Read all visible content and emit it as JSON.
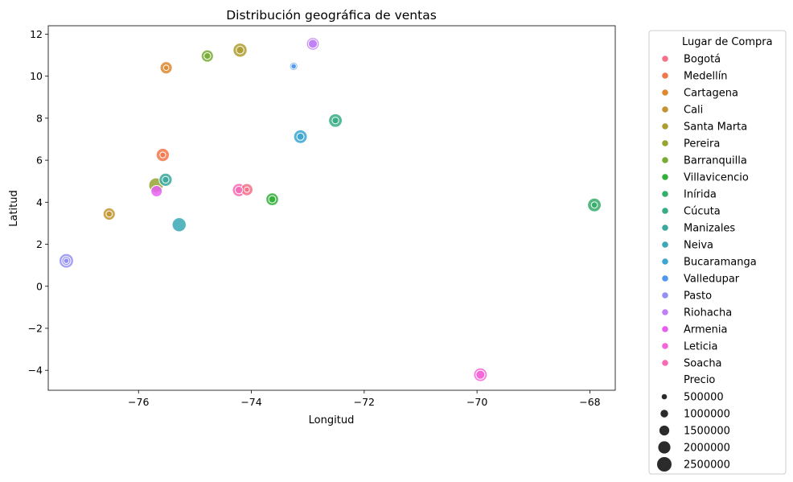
{
  "chart_data": {
    "type": "scatter",
    "title": "Distribución geográfica de ventas",
    "xlabel": "Longitud",
    "ylabel": "Latitud",
    "xlim": [
      -77.6,
      -67.55
    ],
    "ylim": [
      -4.95,
      12.4
    ],
    "xticks": [
      -76,
      -74,
      -72,
      -70,
      -68
    ],
    "xtick_labels": [
      "−76",
      "−74",
      "−72",
      "−70",
      "−68"
    ],
    "yticks": [
      -4,
      -2,
      0,
      2,
      4,
      6,
      8,
      10,
      12
    ],
    "ytick_labels": [
      "−4",
      "−2",
      "0",
      "2",
      "4",
      "6",
      "8",
      "10",
      "12"
    ],
    "grid": false,
    "legend_position": "outside right",
    "hue_title": "Lugar de Compra",
    "size_title": "Precio",
    "size_levels": [
      {
        "label": "500000",
        "value": 500000
      },
      {
        "label": "1000000",
        "value": 1000000
      },
      {
        "label": "1500000",
        "value": 1500000
      },
      {
        "label": "2000000",
        "value": 2000000
      },
      {
        "label": "2500000",
        "value": 2500000
      }
    ],
    "series": [
      {
        "name": "Bogotá",
        "color": "#f77189",
        "points": [
          {
            "x": -74.08,
            "y": 4.6,
            "size": 2000000
          },
          {
            "x": -74.08,
            "y": 4.6,
            "size": 500000
          }
        ]
      },
      {
        "name": "Medellín",
        "color": "#f2774a",
        "points": [
          {
            "x": -75.57,
            "y": 6.25,
            "size": 2200000
          },
          {
            "x": -75.57,
            "y": 6.25,
            "size": 600000
          }
        ]
      },
      {
        "name": "Cartagena",
        "color": "#dc8932",
        "points": [
          {
            "x": -75.51,
            "y": 10.4,
            "size": 2000000
          },
          {
            "x": -75.51,
            "y": 10.4,
            "size": 500000
          }
        ]
      },
      {
        "name": "Cali",
        "color": "#c39532",
        "points": [
          {
            "x": -76.52,
            "y": 3.44,
            "size": 2000000
          },
          {
            "x": -76.52,
            "y": 3.44,
            "size": 700000
          }
        ]
      },
      {
        "name": "Santa Marta",
        "color": "#ae9d31",
        "points": [
          {
            "x": -74.2,
            "y": 11.24,
            "size": 2400000
          },
          {
            "x": -74.2,
            "y": 11.24,
            "size": 1000000
          }
        ]
      },
      {
        "name": "Pereira",
        "color": "#97a431",
        "points": [
          {
            "x": -75.69,
            "y": 4.81,
            "size": 2500000
          }
        ]
      },
      {
        "name": "Barranquilla",
        "color": "#77ab31",
        "points": [
          {
            "x": -74.78,
            "y": 10.96,
            "size": 2000000
          },
          {
            "x": -74.78,
            "y": 10.96,
            "size": 800000
          }
        ]
      },
      {
        "name": "Villavicencio",
        "color": "#33b039",
        "points": [
          {
            "x": -73.63,
            "y": 4.14,
            "size": 2100000
          },
          {
            "x": -73.63,
            "y": 4.14,
            "size": 900000
          }
        ]
      },
      {
        "name": "Inírida",
        "color": "#35ad6b",
        "points": [
          {
            "x": -67.92,
            "y": 3.87,
            "size": 2300000
          },
          {
            "x": -67.92,
            "y": 3.87,
            "size": 700000
          }
        ]
      },
      {
        "name": "Cúcuta",
        "color": "#37ab86",
        "points": [
          {
            "x": -72.51,
            "y": 7.89,
            "size": 2300000
          },
          {
            "x": -72.51,
            "y": 7.89,
            "size": 800000
          }
        ]
      },
      {
        "name": "Manizales",
        "color": "#39a99d",
        "points": [
          {
            "x": -75.52,
            "y": 5.07,
            "size": 2200000
          },
          {
            "x": -75.52,
            "y": 5.07,
            "size": 800000
          }
        ]
      },
      {
        "name": "Neiva",
        "color": "#3aa8b5",
        "points": [
          {
            "x": -75.28,
            "y": 2.93,
            "size": 2400000
          }
        ]
      },
      {
        "name": "Bucaramanga",
        "color": "#3ca5d0",
        "points": [
          {
            "x": -73.13,
            "y": 7.12,
            "size": 2300000
          },
          {
            "x": -73.13,
            "y": 7.12,
            "size": 900000
          }
        ]
      },
      {
        "name": "Valledupar",
        "color": "#5098ee",
        "points": [
          {
            "x": -73.25,
            "y": 10.47,
            "size": 1100000
          },
          {
            "x": -73.25,
            "y": 10.47,
            "size": 500000
          }
        ]
      },
      {
        "name": "Pasto",
        "color": "#9491f4",
        "points": [
          {
            "x": -77.28,
            "y": 1.21,
            "size": 2500000
          },
          {
            "x": -77.28,
            "y": 1.21,
            "size": 1300000
          },
          {
            "x": -77.28,
            "y": 1.21,
            "size": 500000
          }
        ]
      },
      {
        "name": "Riohacha",
        "color": "#c07ff4",
        "points": [
          {
            "x": -72.91,
            "y": 11.54,
            "size": 2100000
          },
          {
            "x": -72.91,
            "y": 11.54,
            "size": 1300000
          }
        ]
      },
      {
        "name": "Armenia",
        "color": "#e65ff3",
        "points": [
          {
            "x": -75.68,
            "y": 4.53,
            "size": 1800000
          }
        ]
      },
      {
        "name": "Leticia",
        "color": "#f565d8",
        "points": [
          {
            "x": -69.94,
            "y": -4.21,
            "size": 2300000
          },
          {
            "x": -69.94,
            "y": -4.21,
            "size": 1300000
          }
        ]
      },
      {
        "name": "Soacha",
        "color": "#f66bb4",
        "points": [
          {
            "x": -74.22,
            "y": 4.58,
            "size": 2200000
          },
          {
            "x": -74.22,
            "y": 4.58,
            "size": 1000000
          }
        ]
      }
    ]
  }
}
